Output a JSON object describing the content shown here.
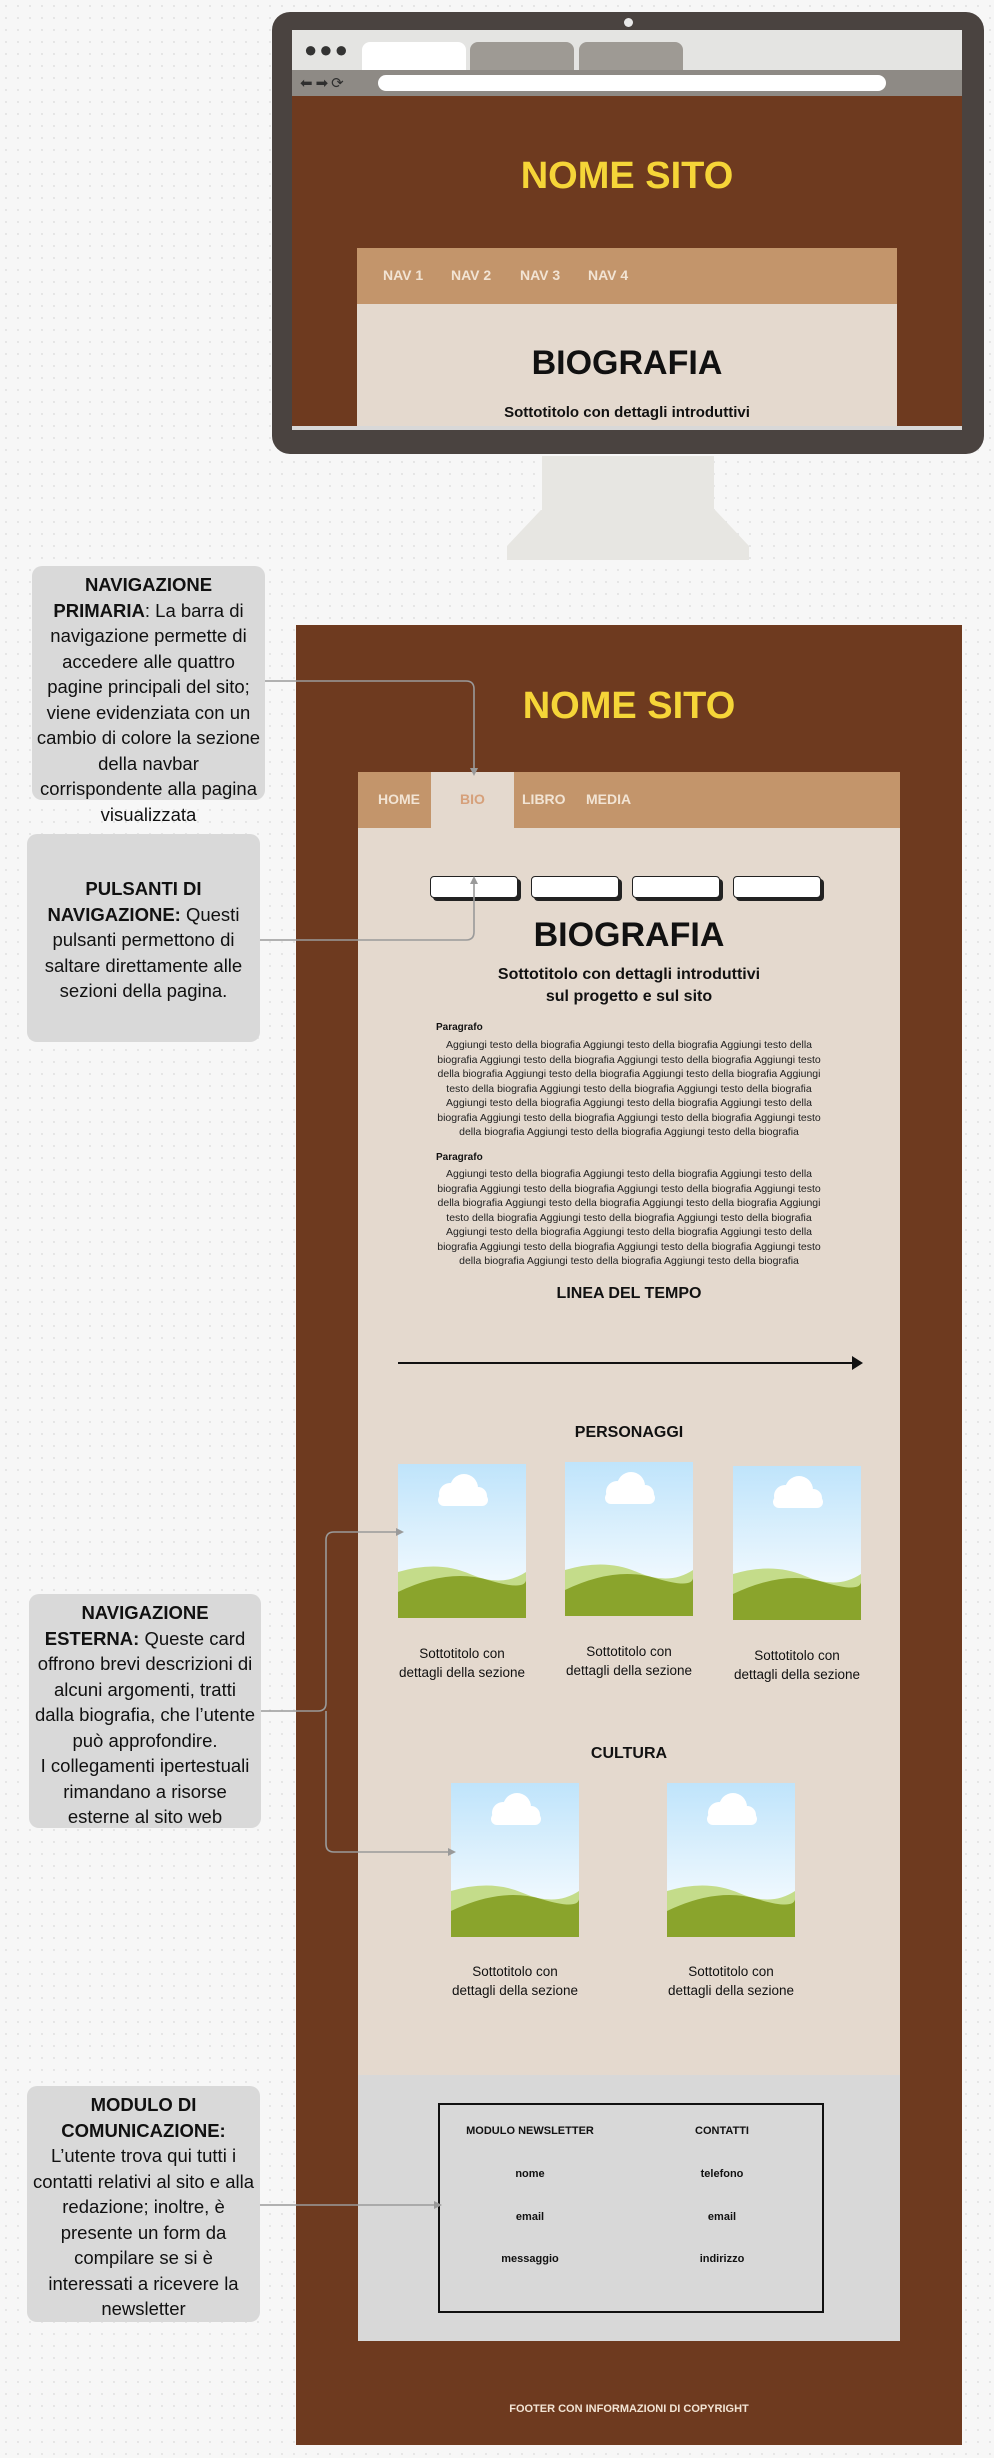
{
  "monitor": {
    "site_title": "NOME SITO",
    "nav": [
      "NAV 1",
      "NAV 2",
      "NAV 3",
      "NAV 4"
    ],
    "heading": "BIOGRAFIA",
    "subtitle": "Sottotitolo con dettagli introduttivi"
  },
  "page": {
    "site_title": "NOME SITO",
    "nav": [
      "HOME",
      "BIO",
      "LIBRO",
      "MEDIA"
    ],
    "heading": "BIOGRAFIA",
    "subtitle_line1": "Sottotitolo con dettagli introduttivi",
    "subtitle_line2": "sul progetto e sul sito",
    "paragraphs": [
      {
        "label": "Paragrafo",
        "text": "Aggiungi testo della biografia Aggiungi testo della biografia Aggiungi testo della biografia Aggiungi testo della biografia Aggiungi testo della biografia Aggiungi testo della biografia Aggiungi testo della biografia Aggiungi testo della biografia Aggiungi testo della biografia Aggiungi testo della biografia Aggiungi testo della biografia Aggiungi testo della biografia Aggiungi testo della biografia Aggiungi testo della biografia Aggiungi testo della biografia Aggiungi testo della biografia Aggiungi testo della biografia Aggiungi testo della biografia Aggiungi testo della biografia"
      },
      {
        "label": "Paragrafo",
        "text": "Aggiungi testo della biografia Aggiungi testo della biografia Aggiungi testo della biografia Aggiungi testo della biografia Aggiungi testo della biografia Aggiungi testo della biografia Aggiungi testo della biografia Aggiungi testo della biografia Aggiungi testo della biografia Aggiungi testo della biografia Aggiungi testo della biografia Aggiungi testo della biografia Aggiungi testo della biografia Aggiungi testo della biografia Aggiungi testo della biografia Aggiungi testo della biografia Aggiungi testo della biografia Aggiungi testo della biografia Aggiungi testo della biografia"
      }
    ],
    "timeline_title": "LINEA DEL TEMPO",
    "characters_title": "PERSONAGGI",
    "culture_title": "CULTURA",
    "card_subtitle_line1": "Sottotitolo con",
    "card_subtitle_line2": "dettagli della sezione",
    "form": {
      "newsletter_title": "MODULO NEWSLETTER",
      "contacts_title": "CONTATTI",
      "newsletter_fields": [
        "nome",
        "email",
        "messaggio"
      ],
      "contact_fields": [
        "telefono",
        "email",
        "indirizzo"
      ]
    },
    "footer": "FOOTER CON INFORMAZIONI DI COPYRIGHT"
  },
  "annotations": {
    "primary_nav": {
      "title": "NAVIGAZIONE PRIMARIA",
      "text": ": La barra di navigazione permette di accedere alle quattro pagine principali del sito; viene evidenziata con un cambio di colore la sezione della navbar corrispondente alla pagina visualizzata"
    },
    "nav_buttons": {
      "title": "PULSANTI DI NAVIGAZIONE:",
      "text": " Questi pulsanti permettono di saltare direttamente alle sezioni della pagina."
    },
    "external_nav": {
      "title": "NAVIGAZIONE ESTERNA:",
      "text1": " Queste card offrono brevi descrizioni di alcuni argomenti, tratti dalla biografia, che l’utente può approfondire.",
      "text2": "I collegamenti ipertestuali rimandano a risorse esterne al sito web"
    },
    "communication": {
      "title": "MODULO DI COMUNICAZIONE:",
      "text": " L’utente trova qui tutti i contatti relativi al sito e alla redazione; inoltre, è presente un form da compilare se si è interessati a ricevere la newsletter"
    }
  },
  "colors": {
    "page_brown": "#6e3a1f",
    "nav_tan": "#c3956b",
    "content_beige": "#e4d9ce",
    "title_yellow": "#f5d538",
    "annotation_gray": "#d9d9d9"
  }
}
